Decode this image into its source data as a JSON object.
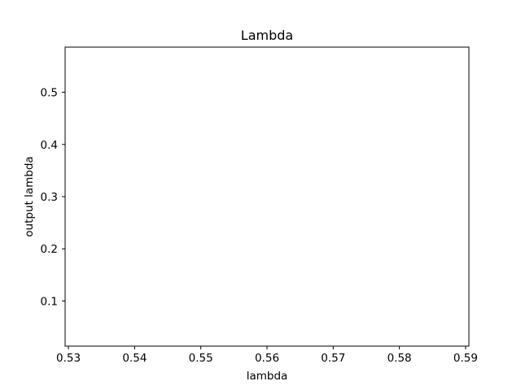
{
  "chart_data": {
    "type": "line",
    "title": "Lambda",
    "xlabel": "lambda",
    "ylabel": "output lambda",
    "xlim": [
      0.5295,
      0.5905
    ],
    "ylim": [
      0.0135,
      0.5865
    ],
    "x_ticks": [
      0.53,
      0.54,
      0.55,
      0.56,
      0.57,
      0.58,
      0.59
    ],
    "x_tick_labels": [
      "0.53",
      "0.54",
      "0.55",
      "0.56",
      "0.57",
      "0.58",
      "0.59"
    ],
    "y_ticks": [
      0.1,
      0.2,
      0.3,
      0.4,
      0.5
    ],
    "y_tick_labels": [
      "0.1",
      "0.2",
      "0.3",
      "0.4",
      "0.5"
    ],
    "series": [],
    "grid": false,
    "legend": "none"
  }
}
